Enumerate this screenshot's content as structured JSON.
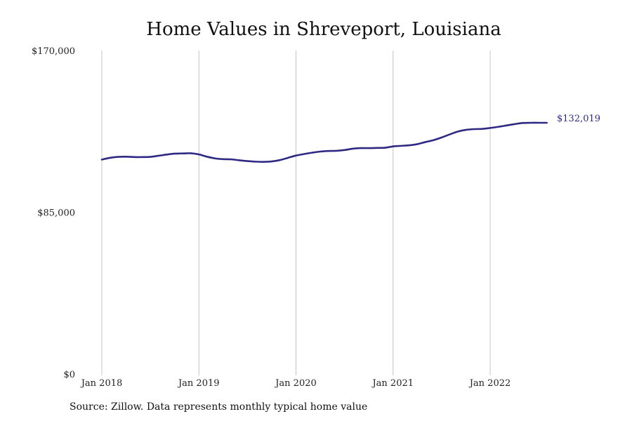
{
  "chart_data": {
    "type": "line",
    "title": "Home Values in Shreveport, Louisiana",
    "xlabel": "",
    "ylabel": "",
    "ylim": [
      0,
      170000
    ],
    "y_ticks": [
      {
        "value": 0,
        "label": "$0"
      },
      {
        "value": 85000,
        "label": "$85,000"
      },
      {
        "value": 170000,
        "label": "$170,000"
      }
    ],
    "x_ticks": [
      {
        "value": "2018-01",
        "label": "Jan 2018"
      },
      {
        "value": "2019-01",
        "label": "Jan 2019"
      },
      {
        "value": "2020-01",
        "label": "Jan 2020"
      },
      {
        "value": "2021-01",
        "label": "Jan 2021"
      },
      {
        "value": "2022-01",
        "label": "Jan 2022"
      }
    ],
    "x_range": [
      "2018-01",
      "2022-08"
    ],
    "grid": {
      "vertical": true,
      "horizontal": false
    },
    "line_color": "#2e2a84",
    "series": [
      {
        "x": [
          "2018-01",
          "2018-02",
          "2018-03",
          "2018-04",
          "2018-05",
          "2018-06",
          "2018-07",
          "2018-08",
          "2018-09",
          "2018-10",
          "2018-11",
          "2018-12",
          "2019-01",
          "2019-02",
          "2019-03",
          "2019-04",
          "2019-05",
          "2019-06",
          "2019-07",
          "2019-08",
          "2019-09",
          "2019-10",
          "2019-11",
          "2019-12",
          "2020-01",
          "2020-02",
          "2020-03",
          "2020-04",
          "2020-05",
          "2020-06",
          "2020-07",
          "2020-08",
          "2020-09",
          "2020-10",
          "2020-11",
          "2020-12",
          "2021-01",
          "2021-02",
          "2021-03",
          "2021-04",
          "2021-05",
          "2021-06",
          "2021-07",
          "2021-08",
          "2021-09",
          "2021-10",
          "2021-11",
          "2021-12",
          "2022-01",
          "2022-02",
          "2022-03",
          "2022-04",
          "2022-05",
          "2022-06",
          "2022-07",
          "2022-08"
        ],
        "values": [
          112700,
          113600,
          114100,
          114200,
          114000,
          114000,
          114100,
          114700,
          115300,
          115800,
          115900,
          116000,
          115400,
          114200,
          113300,
          112900,
          112800,
          112300,
          111900,
          111600,
          111500,
          111700,
          112400,
          113600,
          114800,
          115600,
          116300,
          116900,
          117200,
          117300,
          117700,
          118400,
          118700,
          118700,
          118800,
          118900,
          119600,
          119900,
          120200,
          120800,
          121900,
          122900,
          124300,
          125900,
          127400,
          128300,
          128700,
          128800,
          129300,
          129900,
          130600,
          131300,
          131900,
          132019,
          132019,
          132019
        ]
      }
    ],
    "end_label": "$132,019"
  },
  "source_note": "Source: Zillow. Data represents monthly typical home value"
}
